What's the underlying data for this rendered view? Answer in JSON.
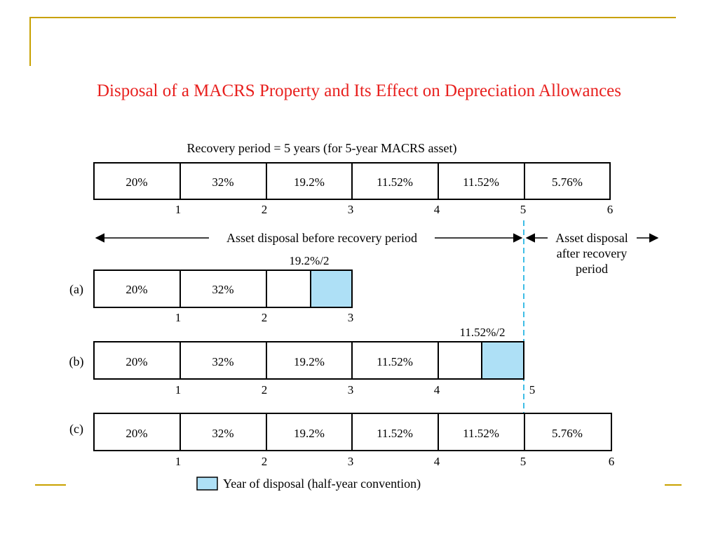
{
  "slide": {
    "title": "Disposal of a MACRS Property and Its Effect on Depreciation Allowances",
    "accent_color": "#c8a100",
    "title_color": "#e8201e"
  },
  "diagram": {
    "header": "Recovery period = 5 years (for 5-year MACRS asset)",
    "rates": [
      "20%",
      "32%",
      "19.2%",
      "11.52%",
      "11.52%",
      "5.76%"
    ],
    "year_ticks": [
      "1",
      "2",
      "3",
      "4",
      "5",
      "6"
    ],
    "before_label": "Asset disposal before recovery period",
    "after_label_line1": "Asset disposal",
    "after_label_line2": "after recovery",
    "after_label_line3": "period",
    "case_a": {
      "label": "(a)",
      "cells": [
        "20%",
        "32%"
      ],
      "half_label": "19.2%/2",
      "ticks": [
        "1",
        "2",
        "3"
      ]
    },
    "case_b": {
      "label": "(b)",
      "cells": [
        "20%",
        "32%",
        "19.2%",
        "11.52%"
      ],
      "half_label": "11.52%/2",
      "ticks": [
        "1",
        "2",
        "3",
        "4",
        "5"
      ]
    },
    "case_c": {
      "label": "(c)",
      "cells": [
        "20%",
        "32%",
        "19.2%",
        "11.52%",
        "11.52%",
        "5.76%"
      ],
      "ticks": [
        "1",
        "2",
        "3",
        "4",
        "5",
        "6"
      ]
    },
    "legend_label": "Year of disposal (half-year convention)",
    "highlight_color": "#aee0f6",
    "dashed_line_color": "#3fbde6"
  }
}
